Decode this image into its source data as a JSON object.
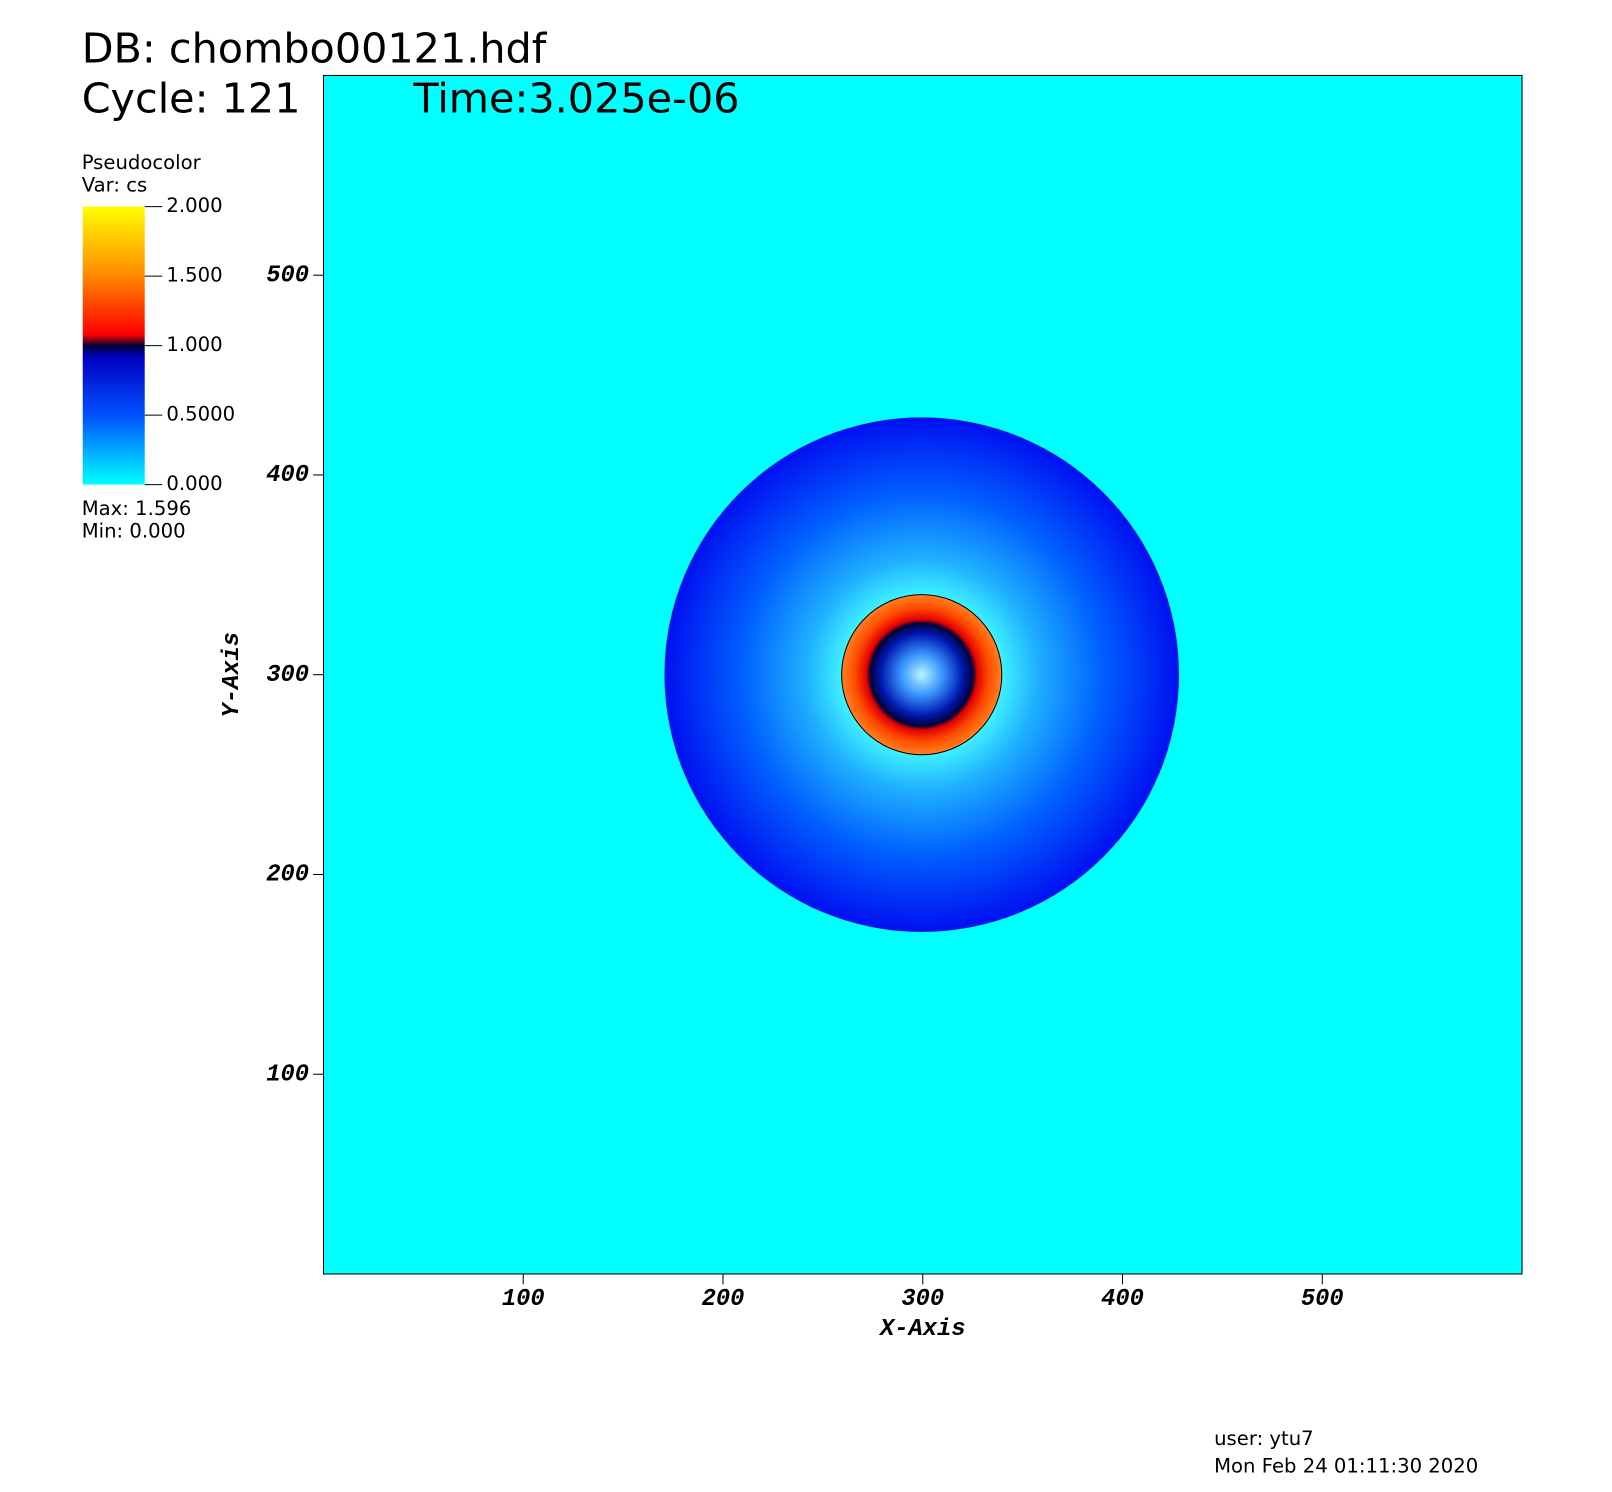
{
  "chart_data": {
    "type": "pseudocolor",
    "db_label": "DB: chombo00121.hdf",
    "cycle_label": "Cycle: 121",
    "time_label": "Time:3.025e-06",
    "legend_title": "Pseudocolor",
    "legend_var": "Var: cs",
    "max": {
      "value": 1.596,
      "label": "Max:  1.596"
    },
    "min": {
      "value": 0,
      "label": "Min:  0.000"
    },
    "cbar_lim": [
      0,
      2
    ],
    "cbar_ticks": [
      {
        "value": 0,
        "label": "0.000"
      },
      {
        "value": 0.5,
        "label": "0.5000"
      },
      {
        "value": 1,
        "label": "1.000"
      },
      {
        "value": 1.5,
        "label": "1.500"
      },
      {
        "value": 2,
        "label": "2.000"
      }
    ],
    "xlabel": "X-Axis",
    "ylabel": "Y-Axis",
    "xlim": [
      0,
      600
    ],
    "ylim": [
      0,
      600
    ],
    "xticks": [
      100,
      200,
      300,
      400,
      500
    ],
    "yticks": [
      100,
      200,
      300,
      400,
      500
    ],
    "user_label": "user: ytu7",
    "date_label": "Mon Feb 24 01:11:30 2020"
  }
}
